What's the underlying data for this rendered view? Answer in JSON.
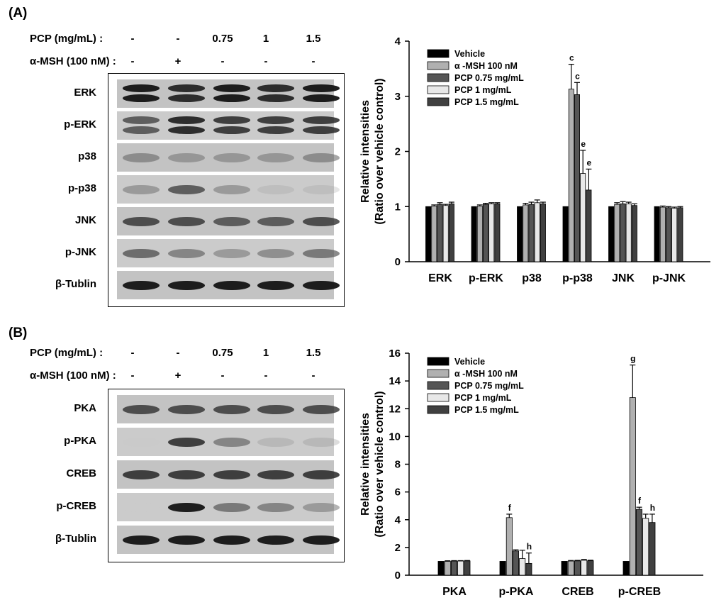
{
  "panels": [
    {
      "label": "(A)",
      "treatments": {
        "pcp_label": "PCP (mg/mL) :",
        "pcp_values": [
          "-",
          "-",
          "0.75",
          "1",
          "1.5"
        ],
        "msh_label": "α-MSH (100 nM) :",
        "msh_values": [
          "-",
          "+",
          "-",
          "-",
          "-"
        ]
      },
      "blot_rows": [
        {
          "label": "ERK",
          "intensity": [
            0.95,
            0.9,
            0.95,
            0.9,
            0.95
          ],
          "double": true
        },
        {
          "label": "p-ERK",
          "intensity": [
            0.75,
            0.9,
            0.85,
            0.85,
            0.85
          ],
          "double": true
        },
        {
          "label": "p38",
          "intensity": [
            0.55,
            0.5,
            0.5,
            0.5,
            0.55
          ],
          "double": false
        },
        {
          "label": "p-p38",
          "intensity": [
            0.5,
            0.75,
            0.5,
            0.25,
            0.25
          ],
          "double": false
        },
        {
          "label": "JNK",
          "intensity": [
            0.8,
            0.8,
            0.75,
            0.75,
            0.8
          ],
          "double": false
        },
        {
          "label": "p-JNK",
          "intensity": [
            0.7,
            0.6,
            0.5,
            0.55,
            0.65
          ],
          "double": false
        },
        {
          "label": "β-Tublin",
          "intensity": [
            0.95,
            0.95,
            0.95,
            0.95,
            0.95
          ],
          "double": false
        }
      ]
    },
    {
      "label": "(B)",
      "treatments": {
        "pcp_label": "PCP (mg/mL) :",
        "pcp_values": [
          "-",
          "-",
          "0.75",
          "1",
          "1.5"
        ],
        "msh_label": "α-MSH (100 nM) :",
        "msh_values": [
          "-",
          "+",
          "-",
          "-",
          "-"
        ]
      },
      "blot_rows": [
        {
          "label": "PKA",
          "intensity": [
            0.8,
            0.8,
            0.8,
            0.8,
            0.8
          ],
          "double": false
        },
        {
          "label": "p-PKA",
          "intensity": [
            0.05,
            0.85,
            0.6,
            0.3,
            0.3
          ],
          "double": false
        },
        {
          "label": "CREB",
          "intensity": [
            0.85,
            0.85,
            0.85,
            0.85,
            0.85
          ],
          "double": false
        },
        {
          "label": "p-CREB",
          "intensity": [
            0.0,
            0.95,
            0.65,
            0.6,
            0.5
          ],
          "double": false
        },
        {
          "label": "β-Tublin",
          "intensity": [
            0.95,
            0.95,
            0.95,
            0.95,
            0.95
          ],
          "double": false
        }
      ]
    }
  ],
  "chart_data": [
    {
      "type": "bar",
      "title": "",
      "xlabel": "",
      "ylabel": "Relative intensities\n(Ratio over vehicle control)",
      "ylim": [
        0,
        4
      ],
      "yticks": [
        0,
        1,
        2,
        3,
        4
      ],
      "legend_position": "top-left",
      "categories": [
        "ERK",
        "p-ERK",
        "p38",
        "p-p38",
        "JNK",
        "p-JNK"
      ],
      "series": [
        {
          "name": "Vehicle",
          "color": "#000000",
          "values": [
            1.0,
            1.0,
            1.0,
            1.0,
            1.0,
            1.0
          ],
          "errors": [
            0,
            0,
            0,
            0,
            0,
            0
          ],
          "labels": [
            "",
            "",
            "",
            "",
            "",
            ""
          ]
        },
        {
          "name": "α -MSH 100 nM",
          "color": "#b0b0b0",
          "values": [
            1.01,
            1.01,
            1.03,
            3.13,
            1.04,
            0.99
          ],
          "errors": [
            0.02,
            0.02,
            0.03,
            0.45,
            0.03,
            0.02
          ],
          "labels": [
            "",
            "",
            "",
            "c",
            "",
            ""
          ]
        },
        {
          "name": "PCP 0.75 mg/mL",
          "color": "#555555",
          "values": [
            1.04,
            1.04,
            1.04,
            3.03,
            1.05,
            0.98
          ],
          "errors": [
            0.03,
            0.02,
            0.04,
            0.22,
            0.04,
            0.02
          ],
          "labels": [
            "",
            "",
            "",
            "c",
            "",
            ""
          ]
        },
        {
          "name": "PCP 1 mg/mL",
          "color": "#e8e8e8",
          "values": [
            1.02,
            1.05,
            1.07,
            1.6,
            1.05,
            0.97
          ],
          "errors": [
            0.02,
            0.02,
            0.05,
            0.42,
            0.03,
            0.02
          ],
          "labels": [
            "",
            "",
            "",
            "e",
            "",
            ""
          ]
        },
        {
          "name": "PCP 1.5 mg/mL",
          "color": "#404040",
          "values": [
            1.05,
            1.05,
            1.05,
            1.3,
            1.02,
            0.98
          ],
          "errors": [
            0.03,
            0.02,
            0.03,
            0.38,
            0.03,
            0.02
          ],
          "labels": [
            "",
            "",
            "",
            "e",
            "",
            ""
          ]
        }
      ]
    },
    {
      "type": "bar",
      "title": "",
      "xlabel": "",
      "ylabel": "Relative intensities\n(Ratio over vehicle control)",
      "ylim": [
        0,
        16
      ],
      "yticks": [
        0,
        2,
        4,
        6,
        8,
        10,
        12,
        14,
        16
      ],
      "legend_position": "top-left",
      "categories": [
        "PKA",
        "p-PKA",
        "CREB",
        "p-CREB"
      ],
      "series": [
        {
          "name": "Vehicle",
          "color": "#000000",
          "values": [
            1.0,
            1.0,
            1.0,
            1.0
          ],
          "errors": [
            0,
            0,
            0,
            0
          ],
          "labels": [
            "",
            "",
            "",
            ""
          ]
        },
        {
          "name": "α -MSH 100 nM",
          "color": "#b0b0b0",
          "values": [
            1.0,
            4.15,
            1.02,
            12.8
          ],
          "errors": [
            0.04,
            0.25,
            0.04,
            2.35
          ],
          "labels": [
            "",
            "f",
            "",
            "g"
          ]
        },
        {
          "name": "PCP 0.75 mg/mL",
          "color": "#555555",
          "values": [
            1.02,
            1.75,
            1.03,
            4.75
          ],
          "errors": [
            0.03,
            0.08,
            0.04,
            0.15
          ],
          "labels": [
            "",
            "",
            "",
            "f"
          ]
        },
        {
          "name": "PCP 1 mg/mL",
          "color": "#e8e8e8",
          "values": [
            1.02,
            1.2,
            1.08,
            4.1
          ],
          "errors": [
            0.03,
            0.6,
            0.05,
            0.3
          ],
          "labels": [
            "",
            "",
            "",
            ""
          ]
        },
        {
          "name": "PCP 1.5 mg/mL",
          "color": "#404040",
          "values": [
            1.03,
            0.85,
            1.04,
            3.8
          ],
          "errors": [
            0.03,
            0.75,
            0.04,
            0.6
          ],
          "labels": [
            "",
            "h",
            "",
            "h"
          ]
        }
      ]
    }
  ]
}
